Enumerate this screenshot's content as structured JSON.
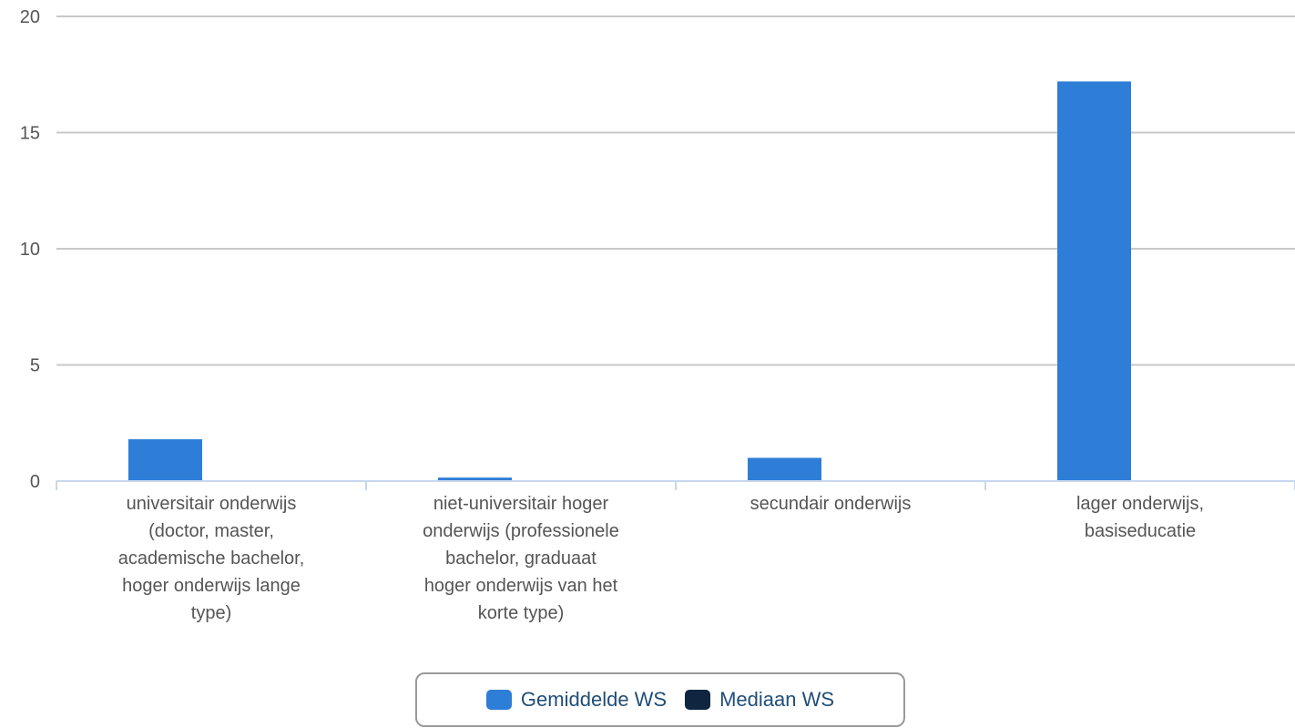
{
  "chart_data": {
    "type": "bar",
    "categories": [
      "universitair onderwijs (doctor, master, academische bachelor, hoger onderwijs lange type)",
      "niet-universitair hoger onderwijs (professionele bachelor, graduaat hoger onderwijs van het korte type)",
      "secundair onderwijs",
      "lager onderwijs, basiseducatie"
    ],
    "category_lines": [
      [
        "universitair onderwijs",
        "(doctor, master,",
        "academische bachelor,",
        "hoger onderwijs lange",
        "type)"
      ],
      [
        "niet-universitair hoger",
        "onderwijs (professionele",
        "bachelor, graduaat",
        "hoger onderwijs van het",
        "korte type)"
      ],
      [
        "secundair onderwijs"
      ],
      [
        "lager onderwijs,",
        "basiseducatie"
      ]
    ],
    "series": [
      {
        "name": "Gemiddelde WS",
        "color": "#2e7dd7",
        "values": [
          1.8,
          0.15,
          1.0,
          17.2
        ]
      },
      {
        "name": "Mediaan WS",
        "color": "#0f2540",
        "values": [
          0,
          0,
          0,
          0
        ]
      }
    ],
    "ylim": [
      0,
      20
    ],
    "yticks": [
      "0",
      "5",
      "10",
      "15",
      "20"
    ],
    "grid": true,
    "legend_position": "bottom"
  }
}
